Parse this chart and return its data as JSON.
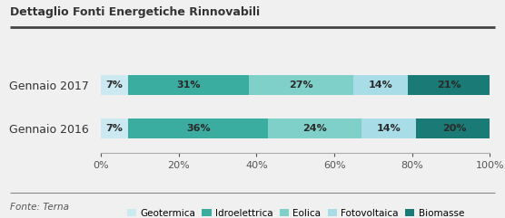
{
  "title": "Dettaglio Fonti Energetiche Rinnovabili",
  "footnote": "Fonte: Terna",
  "categories": [
    "Gennaio 2016",
    "Gennaio 2017"
  ],
  "series": [
    {
      "label": "Geotermica",
      "values": [
        7,
        7
      ],
      "color": "#cce9f2"
    },
    {
      "label": "Idroelettrica",
      "values": [
        31,
        36
      ],
      "color": "#3aada0"
    },
    {
      "label": "Eolica",
      "values": [
        27,
        24
      ],
      "color": "#7ed0c8"
    },
    {
      "label": "Fotovoltaica",
      "values": [
        14,
        14
      ],
      "color": "#a8dde8"
    },
    {
      "label": "Biomasse",
      "values": [
        21,
        20
      ],
      "color": "#1a7a75"
    }
  ],
  "xlim": [
    0,
    100
  ],
  "xticks": [
    0,
    20,
    40,
    60,
    80,
    100
  ],
  "xticklabels": [
    "0%",
    "20%",
    "40%",
    "60%",
    "80%",
    "100%"
  ],
  "bar_height": 0.45,
  "background_color": "#f0f0f0",
  "title_fontsize": 9,
  "label_fontsize": 8,
  "tick_fontsize": 8,
  "legend_fontsize": 7.5,
  "footnote_fontsize": 7.5
}
